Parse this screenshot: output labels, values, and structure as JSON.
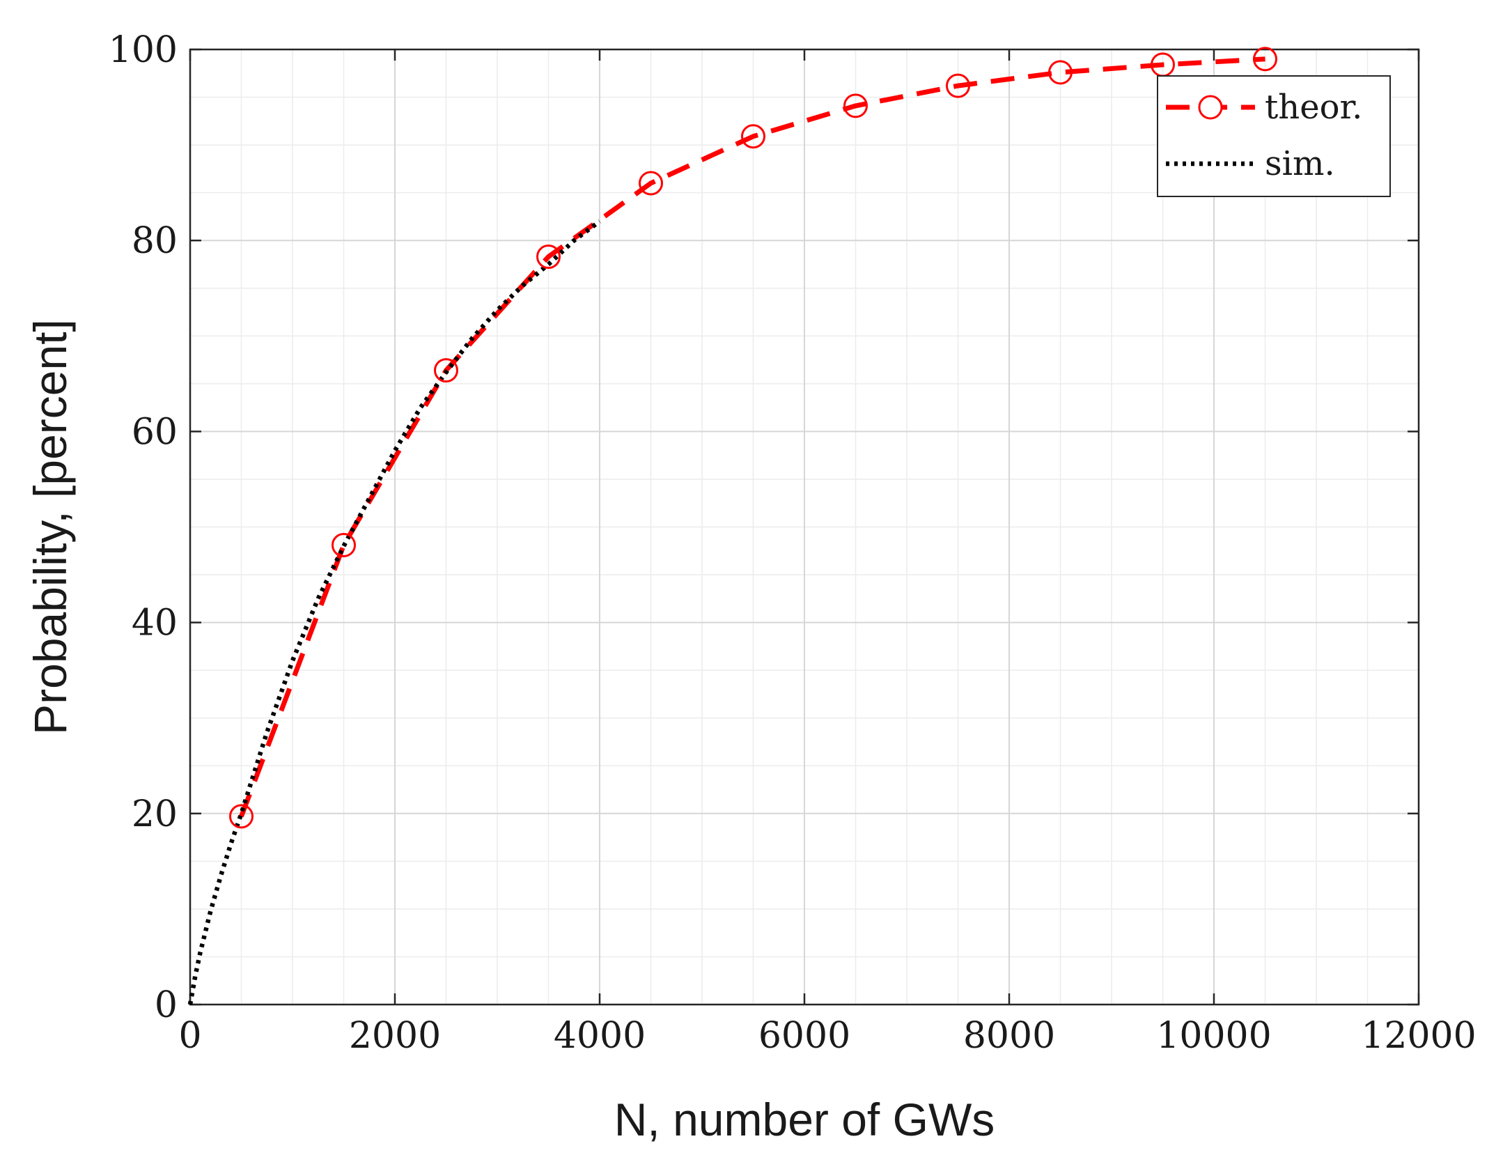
{
  "chart_data": {
    "type": "line",
    "xlabel": "N, number of GWs",
    "ylabel": "Probability, [percent]",
    "xlim": [
      0,
      12000
    ],
    "ylim": [
      0,
      100
    ],
    "x_ticks": [
      0,
      2000,
      4000,
      6000,
      8000,
      10000,
      12000
    ],
    "y_ticks": [
      0,
      20,
      40,
      60,
      80,
      100
    ],
    "x_tick_labels": [
      "0",
      "2000",
      "4000",
      "6000",
      "8000",
      "10000",
      "12000"
    ],
    "y_tick_labels": [
      "0",
      "20",
      "40",
      "60",
      "80",
      "100"
    ],
    "x_minor_step": 500,
    "y_minor_step": 5,
    "grid": true,
    "minor_grid": true,
    "legend_position": "top-right",
    "series": [
      {
        "name": "theor.",
        "style": "dashed",
        "marker": "circle",
        "color": "#ff0000",
        "x": [
          500,
          1500,
          2500,
          3500,
          4500,
          5500,
          6500,
          7500,
          8500,
          9500,
          10500
        ],
        "y": [
          19.7,
          48.1,
          66.4,
          78.3,
          86.0,
          90.9,
          94.1,
          96.2,
          97.6,
          98.4,
          99.0
        ]
      },
      {
        "name": "sim.",
        "style": "dotted",
        "marker": "none",
        "color": "#000000",
        "x": [
          0,
          50,
          100,
          200,
          300,
          400,
          500,
          750,
          1000,
          1250,
          1500,
          1750,
          2000,
          2250,
          2500,
          2750,
          3000,
          3250,
          3500,
          3750,
          4000
        ],
        "y": [
          0,
          3.0,
          5.5,
          9.8,
          13.5,
          16.9,
          20.0,
          28.5,
          36.0,
          42.5,
          48.0,
          53.0,
          58.0,
          62.5,
          66.2,
          69.7,
          72.7,
          75.3,
          77.5,
          80.0,
          82.0
        ]
      }
    ]
  }
}
